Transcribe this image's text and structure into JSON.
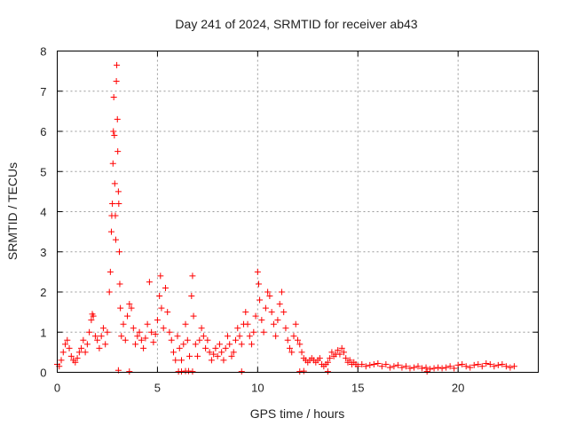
{
  "chart_data": {
    "type": "scatter",
    "title": "Day 241 of 2024, SRMTID for receiver ab43",
    "xlabel": "GPS time / hours",
    "ylabel": "SRMTID / TECUs",
    "xlim": [
      0,
      24
    ],
    "ylim": [
      0,
      8
    ],
    "xticks": [
      0,
      5,
      10,
      15,
      20
    ],
    "yticks": [
      0,
      1,
      2,
      3,
      4,
      5,
      6,
      7,
      8
    ],
    "grid": true,
    "marker": "plus",
    "color": "#ff0000",
    "series": [
      {
        "name": "SRMTID",
        "points": [
          [
            0.0,
            0.2
          ],
          [
            0.1,
            0.15
          ],
          [
            0.2,
            0.3
          ],
          [
            0.3,
            0.5
          ],
          [
            0.4,
            0.7
          ],
          [
            0.5,
            0.8
          ],
          [
            0.6,
            0.6
          ],
          [
            0.7,
            0.4
          ],
          [
            0.8,
            0.3
          ],
          [
            0.9,
            0.25
          ],
          [
            1.0,
            0.35
          ],
          [
            1.1,
            0.5
          ],
          [
            1.2,
            0.6
          ],
          [
            1.3,
            0.8
          ],
          [
            1.4,
            0.5
          ],
          [
            1.5,
            0.7
          ],
          [
            1.6,
            1.0
          ],
          [
            1.7,
            1.3
          ],
          [
            1.75,
            1.45
          ],
          [
            1.8,
            1.4
          ],
          [
            1.9,
            0.9
          ],
          [
            2.0,
            0.8
          ],
          [
            2.1,
            0.6
          ],
          [
            2.2,
            0.9
          ],
          [
            2.3,
            1.1
          ],
          [
            2.4,
            0.7
          ],
          [
            2.5,
            1.0
          ],
          [
            2.6,
            2.0
          ],
          [
            2.65,
            2.5
          ],
          [
            2.7,
            3.5
          ],
          [
            2.72,
            3.9
          ],
          [
            2.75,
            4.2
          ],
          [
            2.78,
            5.2
          ],
          [
            2.8,
            6.0
          ],
          [
            2.82,
            6.85
          ],
          [
            2.85,
            5.9
          ],
          [
            2.87,
            4.7
          ],
          [
            2.9,
            3.9
          ],
          [
            2.92,
            3.3
          ],
          [
            2.95,
            7.25
          ],
          [
            2.97,
            7.65
          ],
          [
            3.0,
            6.3
          ],
          [
            3.02,
            5.5
          ],
          [
            3.05,
            4.5
          ],
          [
            3.07,
            4.2
          ],
          [
            3.1,
            3.0
          ],
          [
            3.12,
            2.2
          ],
          [
            3.15,
            1.6
          ],
          [
            3.2,
            0.9
          ],
          [
            3.3,
            1.2
          ],
          [
            3.4,
            0.8
          ],
          [
            3.5,
            1.4
          ],
          [
            3.6,
            1.7
          ],
          [
            3.7,
            1.6
          ],
          [
            3.8,
            1.1
          ],
          [
            3.9,
            0.7
          ],
          [
            4.0,
            0.9
          ],
          [
            4.1,
            1.0
          ],
          [
            4.2,
            0.8
          ],
          [
            4.3,
            0.6
          ],
          [
            4.4,
            0.85
          ],
          [
            4.5,
            1.2
          ],
          [
            4.6,
            2.25
          ],
          [
            4.7,
            1.0
          ],
          [
            4.8,
            0.75
          ],
          [
            4.9,
            0.95
          ],
          [
            5.0,
            1.3
          ],
          [
            5.1,
            1.9
          ],
          [
            5.15,
            2.4
          ],
          [
            5.2,
            1.6
          ],
          [
            5.3,
            1.1
          ],
          [
            5.4,
            2.1
          ],
          [
            5.5,
            1.5
          ],
          [
            5.6,
            1.0
          ],
          [
            5.7,
            0.8
          ],
          [
            5.8,
            0.5
          ],
          [
            5.9,
            0.3
          ],
          [
            6.0,
            0.9
          ],
          [
            6.1,
            0.6
          ],
          [
            6.2,
            0.3
          ],
          [
            6.3,
            0.7
          ],
          [
            6.4,
            1.2
          ],
          [
            6.5,
            0.8
          ],
          [
            6.6,
            0.4
          ],
          [
            6.7,
            1.9
          ],
          [
            6.75,
            2.4
          ],
          [
            6.8,
            1.4
          ],
          [
            6.9,
            0.7
          ],
          [
            7.0,
            0.4
          ],
          [
            7.1,
            0.8
          ],
          [
            7.2,
            1.1
          ],
          [
            7.3,
            0.9
          ],
          [
            7.4,
            0.6
          ],
          [
            7.5,
            0.8
          ],
          [
            7.6,
            0.5
          ],
          [
            7.7,
            0.3
          ],
          [
            7.8,
            0.45
          ],
          [
            7.9,
            0.6
          ],
          [
            8.0,
            0.4
          ],
          [
            8.1,
            0.7
          ],
          [
            8.2,
            0.5
          ],
          [
            8.3,
            0.3
          ],
          [
            8.4,
            0.6
          ],
          [
            8.5,
            0.9
          ],
          [
            8.6,
            0.7
          ],
          [
            8.7,
            0.4
          ],
          [
            8.8,
            0.5
          ],
          [
            8.9,
            0.8
          ],
          [
            9.0,
            1.1
          ],
          [
            9.1,
            0.9
          ],
          [
            9.2,
            0.7
          ],
          [
            9.3,
            1.2
          ],
          [
            9.4,
            1.5
          ],
          [
            9.5,
            1.2
          ],
          [
            9.6,
            0.9
          ],
          [
            9.7,
            0.7
          ],
          [
            9.8,
            1.0
          ],
          [
            9.9,
            1.4
          ],
          [
            10.0,
            2.5
          ],
          [
            10.05,
            2.2
          ],
          [
            10.1,
            1.8
          ],
          [
            10.2,
            1.3
          ],
          [
            10.3,
            1.0
          ],
          [
            10.4,
            1.6
          ],
          [
            10.5,
            2.0
          ],
          [
            10.6,
            1.9
          ],
          [
            10.7,
            1.5
          ],
          [
            10.8,
            1.2
          ],
          [
            10.9,
            0.9
          ],
          [
            11.0,
            1.3
          ],
          [
            11.1,
            1.7
          ],
          [
            11.2,
            2.0
          ],
          [
            11.3,
            1.5
          ],
          [
            11.4,
            1.1
          ],
          [
            11.5,
            0.8
          ],
          [
            11.6,
            0.6
          ],
          [
            11.7,
            0.5
          ],
          [
            11.8,
            0.9
          ],
          [
            11.9,
            1.2
          ],
          [
            12.0,
            0.8
          ],
          [
            12.1,
            0.7
          ],
          [
            12.2,
            0.5
          ],
          [
            12.3,
            0.35
          ],
          [
            12.4,
            0.3
          ],
          [
            12.5,
            0.25
          ],
          [
            12.6,
            0.3
          ],
          [
            12.7,
            0.35
          ],
          [
            12.8,
            0.3
          ],
          [
            12.9,
            0.25
          ],
          [
            13.0,
            0.3
          ],
          [
            13.1,
            0.35
          ],
          [
            13.2,
            0.2
          ],
          [
            13.3,
            0.15
          ],
          [
            13.4,
            0.2
          ],
          [
            13.5,
            0.25
          ],
          [
            13.6,
            0.35
          ],
          [
            13.7,
            0.5
          ],
          [
            13.8,
            0.4
          ],
          [
            13.9,
            0.45
          ],
          [
            14.0,
            0.55
          ],
          [
            14.1,
            0.45
          ],
          [
            14.2,
            0.6
          ],
          [
            14.3,
            0.5
          ],
          [
            14.4,
            0.35
          ],
          [
            14.5,
            0.25
          ],
          [
            14.6,
            0.3
          ],
          [
            14.7,
            0.2
          ],
          [
            14.8,
            0.25
          ],
          [
            14.9,
            0.2
          ],
          [
            15.0,
            0.15
          ],
          [
            15.2,
            0.2
          ],
          [
            15.4,
            0.15
          ],
          [
            15.6,
            0.18
          ],
          [
            15.8,
            0.2
          ],
          [
            16.0,
            0.22
          ],
          [
            16.2,
            0.15
          ],
          [
            16.4,
            0.2
          ],
          [
            16.6,
            0.12
          ],
          [
            16.8,
            0.15
          ],
          [
            17.0,
            0.18
          ],
          [
            17.2,
            0.12
          ],
          [
            17.4,
            0.15
          ],
          [
            17.6,
            0.1
          ],
          [
            17.8,
            0.12
          ],
          [
            18.0,
            0.15
          ],
          [
            18.2,
            0.1
          ],
          [
            18.4,
            0.12
          ],
          [
            18.6,
            0.08
          ],
          [
            18.8,
            0.1
          ],
          [
            19.0,
            0.12
          ],
          [
            19.2,
            0.1
          ],
          [
            19.4,
            0.12
          ],
          [
            19.6,
            0.15
          ],
          [
            19.8,
            0.1
          ],
          [
            20.0,
            0.18
          ],
          [
            20.2,
            0.2
          ],
          [
            20.4,
            0.15
          ],
          [
            20.6,
            0.12
          ],
          [
            20.8,
            0.18
          ],
          [
            21.0,
            0.2
          ],
          [
            21.2,
            0.15
          ],
          [
            21.4,
            0.22
          ],
          [
            21.6,
            0.2
          ],
          [
            21.8,
            0.15
          ],
          [
            22.0,
            0.18
          ],
          [
            22.2,
            0.2
          ],
          [
            22.4,
            0.15
          ],
          [
            22.6,
            0.12
          ],
          [
            22.8,
            0.15
          ],
          [
            3.05,
            0.05
          ],
          [
            3.6,
            0.02
          ],
          [
            6.05,
            0.02
          ],
          [
            6.2,
            0.02
          ],
          [
            6.4,
            0.03
          ],
          [
            6.55,
            0.03
          ],
          [
            6.75,
            0.02
          ],
          [
            9.2,
            0.02
          ],
          [
            12.1,
            0.02
          ],
          [
            12.3,
            0.03
          ],
          [
            13.5,
            0.02
          ],
          [
            18.45,
            0.02
          ]
        ]
      }
    ]
  }
}
